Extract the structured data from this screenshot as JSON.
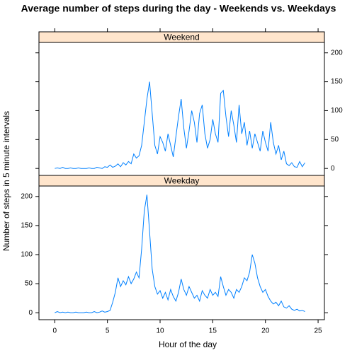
{
  "chart_data": {
    "type": "line",
    "title": "Average number of steps during the day - Weekends vs. Weekdays",
    "xlabel": "Hour of the day",
    "ylabel": "Number of steps in 5 minute intervals",
    "x": [
      0,
      0.25,
      0.5,
      0.75,
      1,
      1.25,
      1.5,
      1.75,
      2,
      2.25,
      2.5,
      2.75,
      3,
      3.25,
      3.5,
      3.75,
      4,
      4.25,
      4.5,
      4.75,
      5,
      5.25,
      5.5,
      5.75,
      6,
      6.25,
      6.5,
      6.75,
      7,
      7.25,
      7.5,
      7.75,
      8,
      8.25,
      8.5,
      8.75,
      9,
      9.25,
      9.5,
      9.75,
      10,
      10.25,
      10.5,
      10.75,
      11,
      11.25,
      11.5,
      11.75,
      12,
      12.25,
      12.5,
      12.75,
      13,
      13.25,
      13.5,
      13.75,
      14,
      14.25,
      14.5,
      14.75,
      15,
      15.25,
      15.5,
      15.75,
      16,
      16.25,
      16.5,
      16.75,
      17,
      17.25,
      17.5,
      17.75,
      18,
      18.25,
      18.5,
      18.75,
      19,
      19.25,
      19.5,
      19.75,
      20,
      20.25,
      20.5,
      20.75,
      21,
      21.25,
      21.5,
      21.75,
      22,
      22.25,
      22.5,
      22.75,
      23,
      23.25,
      23.5,
      23.75
    ],
    "series": [
      {
        "name": "Weekend",
        "color": "#0080ff",
        "values": [
          0,
          1,
          0,
          2,
          0,
          0,
          1,
          0,
          0,
          1,
          0,
          0,
          0,
          1,
          0,
          0,
          2,
          1,
          0,
          3,
          2,
          6,
          2,
          4,
          8,
          3,
          10,
          6,
          12,
          8,
          25,
          18,
          22,
          40,
          80,
          120,
          150,
          95,
          40,
          25,
          55,
          45,
          30,
          60,
          40,
          20,
          55,
          90,
          120,
          70,
          35,
          65,
          100,
          80,
          45,
          95,
          110,
          60,
          35,
          50,
          85,
          60,
          45,
          130,
          135,
          90,
          55,
          100,
          75,
          45,
          110,
          60,
          80,
          40,
          65,
          35,
          60,
          45,
          30,
          65,
          45,
          30,
          80,
          45,
          25,
          40,
          15,
          30,
          8,
          5,
          10,
          3,
          2,
          12,
          3,
          10
        ]
      },
      {
        "name": "Weekday",
        "color": "#0080ff",
        "values": [
          0,
          2,
          0,
          1,
          0,
          1,
          0,
          0,
          1,
          0,
          0,
          0,
          1,
          0,
          0,
          2,
          0,
          1,
          3,
          1,
          2,
          4,
          18,
          35,
          60,
          45,
          55,
          48,
          62,
          50,
          58,
          70,
          60,
          110,
          175,
          203,
          140,
          75,
          45,
          32,
          38,
          25,
          35,
          22,
          40,
          28,
          20,
          35,
          58,
          40,
          30,
          45,
          35,
          25,
          30,
          20,
          38,
          30,
          25,
          40,
          30,
          35,
          28,
          62,
          45,
          30,
          40,
          35,
          25,
          40,
          35,
          45,
          60,
          55,
          70,
          100,
          85,
          60,
          45,
          35,
          40,
          28,
          20,
          15,
          18,
          12,
          20,
          10,
          8,
          12,
          6,
          4,
          6,
          3,
          4,
          2
        ]
      }
    ],
    "xlim": [
      -1.5,
      25.6
    ],
    "ylim": [
      -12,
      218
    ],
    "xticks": [
      0,
      5,
      10,
      15,
      20,
      25
    ],
    "yticks": [
      0,
      50,
      100,
      150,
      200
    ],
    "strip_color": "#ffe5cc"
  }
}
